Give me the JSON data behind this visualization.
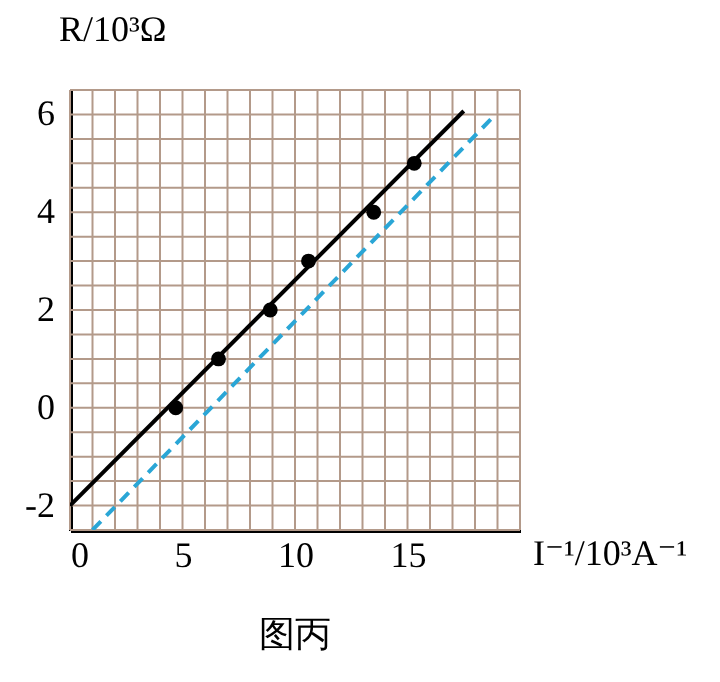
{
  "chart_data": {
    "type": "scatter",
    "xlabel": "I⁻¹/10³A⁻¹",
    "ylabel": "R/10³Ω",
    "annotations": [
      "图丙"
    ],
    "xlim": [
      0,
      20
    ],
    "ylim": [
      -2.5,
      6.5
    ],
    "xticks": [
      0,
      5,
      10,
      15
    ],
    "yticks": [
      -2,
      0,
      2,
      4,
      6
    ],
    "grid": true,
    "series": [
      {
        "marker": "circle",
        "color": "#000000",
        "x": [
          4.7,
          6.6,
          8.9,
          10.6,
          13.5,
          15.3
        ],
        "values": [
          0,
          1,
          2,
          3,
          4,
          5
        ]
      },
      {
        "type": "line",
        "line_style": "solid",
        "color": "#000000",
        "x": [
          0,
          17.5
        ],
        "values": [
          -2,
          6.07
        ]
      },
      {
        "type": "line",
        "line_style": "dashed",
        "color": "#2aa6d6",
        "x": [
          1,
          18.7
        ],
        "values": [
          -2.5,
          5.9
        ]
      }
    ]
  }
}
